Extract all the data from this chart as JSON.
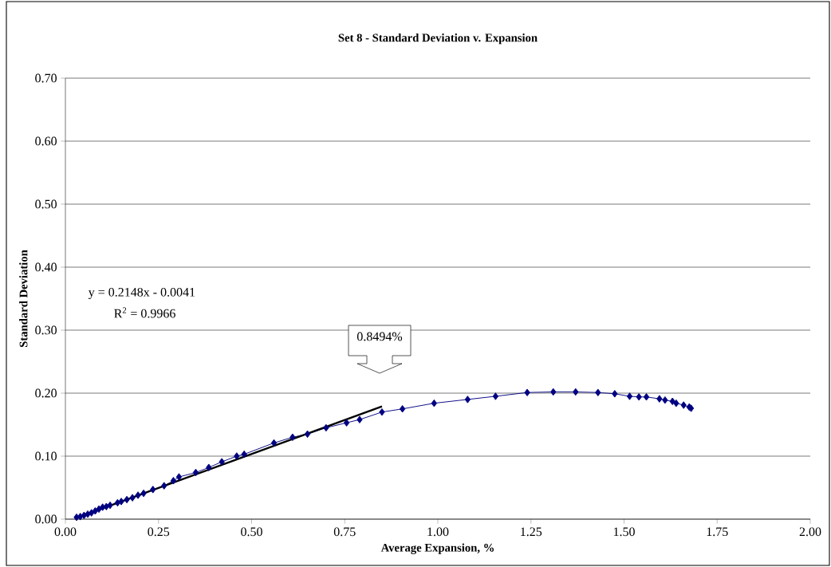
{
  "chart_data": {
    "type": "line",
    "title": "Set 8 - Standard Deviation v. Expansion",
    "xlabel": "Average Expansion, %",
    "ylabel": "Standard Deviation",
    "xlim": [
      0,
      2
    ],
    "ylim": [
      0,
      0.7
    ],
    "xticks": [
      {
        "value": 0,
        "label": "0.00"
      },
      {
        "value": 0.25,
        "label": "0.25"
      },
      {
        "value": 0.5,
        "label": "0.50"
      },
      {
        "value": 0.75,
        "label": "0.75"
      },
      {
        "value": 1,
        "label": "1.00"
      },
      {
        "value": 1.25,
        "label": "1.25"
      },
      {
        "value": 1.5,
        "label": "1.50"
      },
      {
        "value": 1.75,
        "label": "1.75"
      },
      {
        "value": 2,
        "label": "2.00"
      }
    ],
    "yticks": [
      {
        "value": 0,
        "label": "0.00"
      },
      {
        "value": 0.1,
        "label": "0.10"
      },
      {
        "value": 0.2,
        "label": "0.20"
      },
      {
        "value": 0.3,
        "label": "0.30"
      },
      {
        "value": 0.4,
        "label": "0.40"
      },
      {
        "value": 0.5,
        "label": "0.50"
      },
      {
        "value": 0.6,
        "label": "0.60"
      },
      {
        "value": 0.7,
        "label": "0.70"
      }
    ],
    "grid": "y",
    "marker": "diamond",
    "line_style": "solid",
    "series": [
      {
        "color": "#000080",
        "x": [
          0.03,
          0.04,
          0.05,
          0.06,
          0.07,
          0.08,
          0.09,
          0.1,
          0.11,
          0.12,
          0.14,
          0.15,
          0.165,
          0.18,
          0.195,
          0.21,
          0.235,
          0.265,
          0.29,
          0.305,
          0.35,
          0.385,
          0.42,
          0.46,
          0.48,
          0.56,
          0.61,
          0.65,
          0.7,
          0.755,
          0.79,
          0.85,
          0.905,
          0.99,
          1.08,
          1.155,
          1.24,
          1.31,
          1.37,
          1.43,
          1.475,
          1.515,
          1.54,
          1.56,
          1.595,
          1.61,
          1.63,
          1.64,
          1.66,
          1.675,
          1.68
        ],
        "values": [
          0.003,
          0.004,
          0.006,
          0.008,
          0.01,
          0.013,
          0.016,
          0.019,
          0.02,
          0.022,
          0.026,
          0.028,
          0.031,
          0.034,
          0.038,
          0.041,
          0.047,
          0.053,
          0.061,
          0.067,
          0.074,
          0.082,
          0.091,
          0.1,
          0.103,
          0.121,
          0.13,
          0.135,
          0.145,
          0.153,
          0.158,
          0.17,
          0.175,
          0.184,
          0.19,
          0.195,
          0.201,
          0.202,
          0.202,
          0.201,
          0.199,
          0.195,
          0.194,
          0.194,
          0.191,
          0.189,
          0.187,
          0.184,
          0.181,
          0.178,
          0.176
        ]
      },
      {
        "type": "line",
        "marker": "none",
        "color": "#000000",
        "x": [
          0.03,
          0.85
        ],
        "values": [
          0.002,
          0.179
        ]
      }
    ],
    "annotations": [
      "y = 0.2148x - 0.0041",
      "R$^{2}$ = 0.9966",
      "0.8494%"
    ]
  }
}
